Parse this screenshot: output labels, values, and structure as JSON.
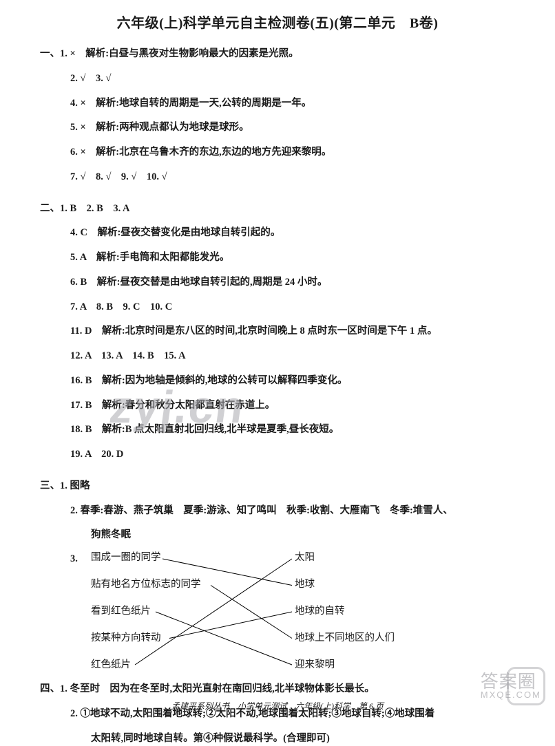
{
  "title": "六年级(上)科学单元自主检测卷(五)(第二单元　B卷)",
  "sec1": {
    "prefix": "一、",
    "q1": "1. ×　解析:白昼与黑夜对生物影响最大的因素是光照。",
    "q2_3": "2. √　3. √",
    "q4": "4. ×　解析:地球自转的周期是一天,公转的周期是一年。",
    "q5": "5. ×　解析:两种观点都认为地球是球形。",
    "q6": "6. ×　解析:北京在乌鲁木齐的东边,东边的地方先迎来黎明。",
    "q7_10": "7. √　8. √　9. √　10. √"
  },
  "sec2": {
    "prefix": "二、",
    "q1_3": "1. B　2. B　3. A",
    "q4": "4. C　解析:昼夜交替变化是由地球自转引起的。",
    "q5": "5. A　解析:手电筒和太阳都能发光。",
    "q6": "6. B　解析:昼夜交替是由地球自转引起的,周期是 24 小时。",
    "q7_10": "7. A　8. B　9. C　10. C",
    "q11": "11. D　解析:北京时间是东八区的时间,北京时间晚上 8 点时东一区时间是下午 1 点。",
    "q12_15": "12. A　13. A　14. B　15. A",
    "q16": "16. B　解析:因为地轴是倾斜的,地球的公转可以解释四季变化。",
    "q17": "17. B　解析:春分和秋分太阳都直射在赤道上。",
    "q18": "18. B　解析:B 点太阳直射北回归线,北半球是夏季,昼长夜短。",
    "q19_20": "19. A　20. D"
  },
  "sec3": {
    "prefix": "三、",
    "q1": "1. 图略",
    "q2a": "2. 春季:春游、燕子筑巢　夏季:游泳、知了鸣叫　秋季:收割、大雁南飞　冬季:堆雪人、",
    "q2b": "狗熊冬眠",
    "q3_lead": "3.",
    "left": [
      "围成一圈的同学",
      "贴有地名方位标志的同学",
      "看到红色纸片",
      "按某种方向转动",
      "红色纸片"
    ],
    "right": [
      "太阳",
      "地球",
      "地球的自转",
      "地球上不同地区的人们",
      "迎来黎明"
    ],
    "connections": [
      [
        0,
        1
      ],
      [
        1,
        3
      ],
      [
        2,
        4
      ],
      [
        3,
        2
      ],
      [
        4,
        0
      ]
    ]
  },
  "sec4": {
    "prefix": "四、",
    "q1": "1. 冬至时　因为在冬至时,太阳光直射在南回归线,北半球物体影长最长。",
    "q2a": "2. ①地球不动,太阳围着地球转;②太阳不动,地球围着太阳转;③地球自转;④地球围着",
    "q2b": "太阳转,同时地球自转。第④种假说最科学。(合理即可)"
  },
  "footer": "孟建平系列丛书　小学单元测试　六年级(上)科学　第 6 页",
  "watermark1": "zyj.cn",
  "watermark2_top": "答案圈",
  "watermark2_bottom": "MXQE.COM",
  "style": {
    "page_bg": "#ffffff",
    "text_color": "#1a1a1a",
    "wm_color": "rgba(170,170,175,0.55)"
  }
}
